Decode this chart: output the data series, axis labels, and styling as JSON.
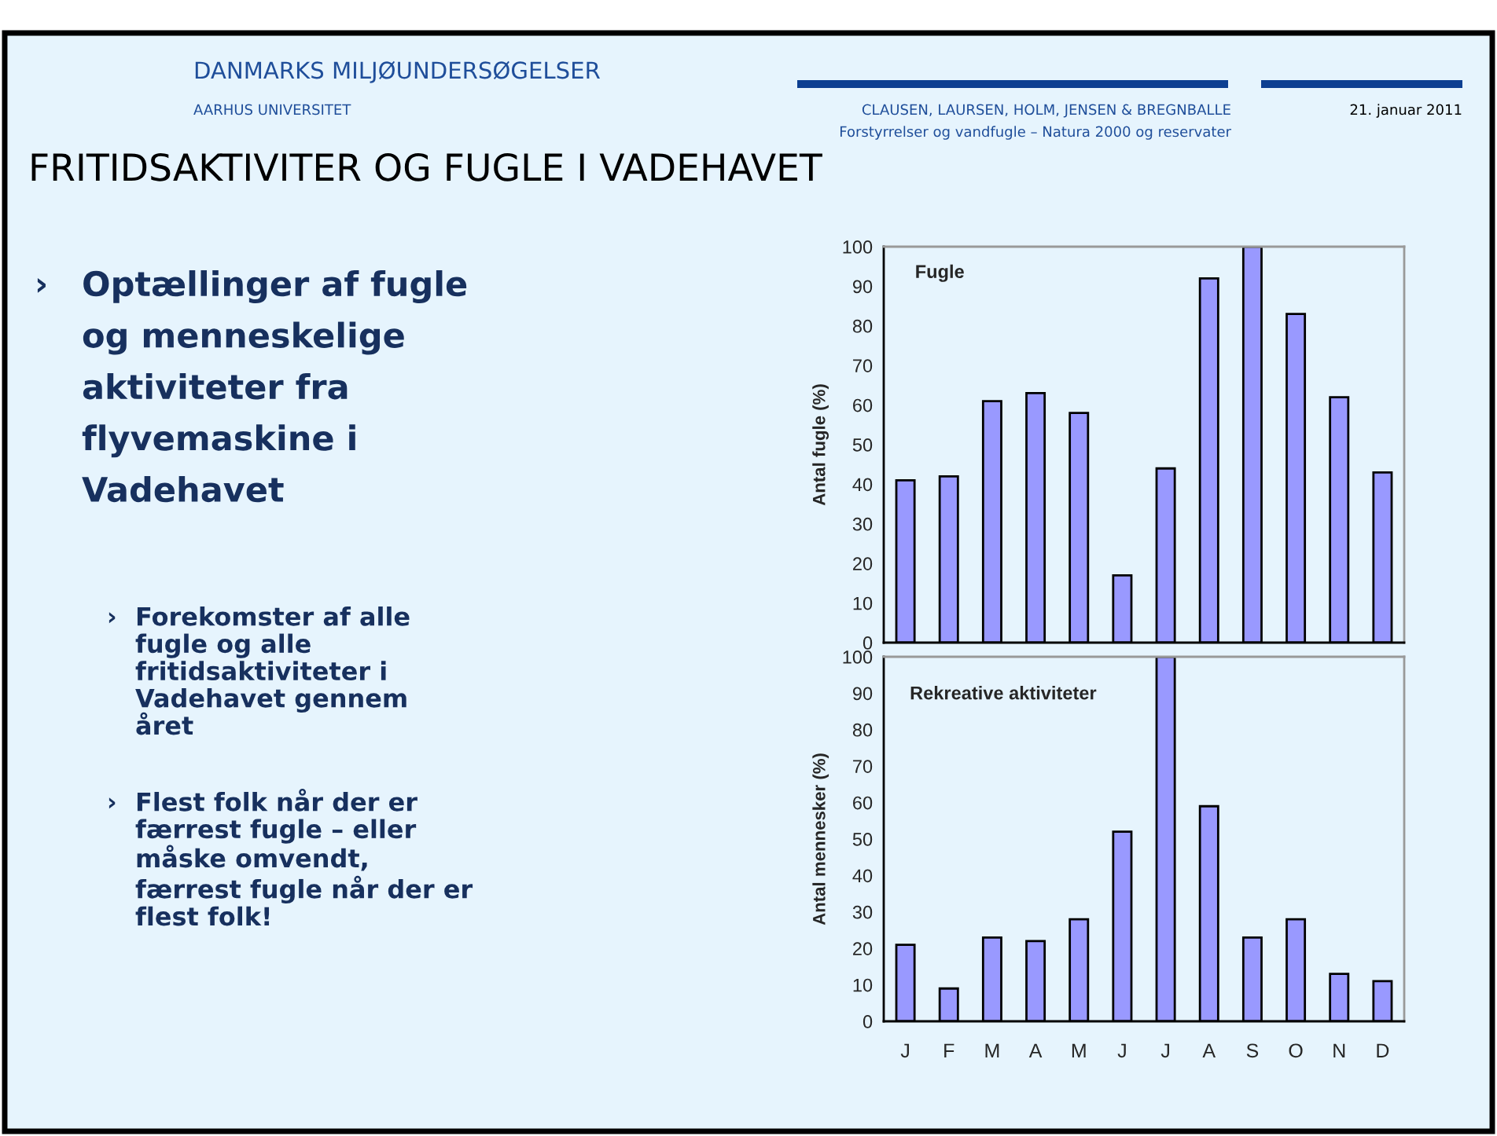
{
  "chart_data": [
    {
      "type": "bar",
      "title": "Fugle",
      "ylabel": "Antal fugle (%)",
      "categories": [
        null,
        null,
        null,
        null,
        null,
        null,
        null,
        null,
        null,
        null,
        null,
        null
      ],
      "values": [
        41,
        42,
        61,
        63,
        58,
        17,
        44,
        92,
        100,
        83,
        62,
        43
      ],
      "color": "#9999ff",
      "ylim": [
        0,
        100
      ],
      "yticks": [
        0,
        10,
        20,
        30,
        40,
        50,
        60,
        70,
        80,
        90,
        100
      ],
      "grid": false,
      "legend": false,
      "tick_labels": "y",
      "annotations": [
        "DANMARKS MILJØUNDERSØGELSER",
        "AARHUS UNIVERSITET",
        "CLAUSEN, LAURSEN, HOLM, JENSEN & BREGNBALLE",
        "Forstyrrelser og vandfugle – Natura 2000 og reservater",
        "21. januar 2011",
        "FRITIDSAKTIVITER OG FUGLE I VADEHAVET",
        "›",
        "Optællinger af fugle\nog menneskelige\naktiviteter fra\nflyvemaskine i\nVadehavet",
        "›",
        "Forekomster af alle\nfugle og alle\nfritidsaktiviteter i\nVadehavet gennem\nåret",
        "›",
        "Flest folk når der er\nfærrest fugle – eller\nmåske omvendt,\nfærrest fugle når der er\nflest folk!"
      ]
    },
    {
      "type": "bar",
      "title": "Rekreative aktiviteter",
      "ylabel": "Antal mennesker (%)",
      "categories": [
        "J",
        "F",
        "M",
        "A",
        "M",
        "J",
        "J",
        "A",
        "S",
        "O",
        "N",
        "D"
      ],
      "values": [
        21,
        9,
        23,
        22,
        28,
        52,
        100,
        59,
        23,
        28,
        13,
        11
      ],
      "color": "#9999ff",
      "ylim": [
        0,
        100
      ],
      "yticks": [
        0,
        10,
        20,
        30,
        40,
        50,
        60,
        70,
        80,
        90,
        100
      ],
      "grid": false,
      "legend": false
    }
  ]
}
